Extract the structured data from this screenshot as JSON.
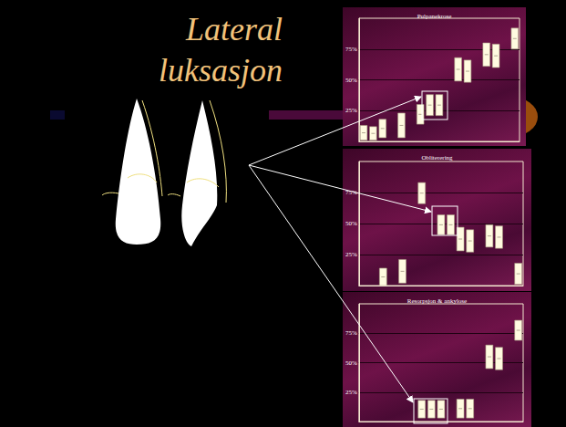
{
  "heading": "Lateral luksasjon",
  "chart_data": [
    {
      "type": "bar",
      "title": "Pulpanekrose",
      "categories": [
        null,
        null,
        null,
        null,
        null,
        null,
        null,
        null,
        null,
        null,
        null,
        null,
        null,
        null,
        null,
        null,
        null
      ],
      "low": [
        1,
        1,
        3,
        null,
        3,
        null,
        14,
        21,
        21,
        null,
        49,
        48,
        null,
        61,
        60,
        null,
        75
      ],
      "high": [
        13,
        12,
        18,
        null,
        23,
        null,
        30,
        38,
        38,
        null,
        68,
        66,
        null,
        80,
        79,
        null,
        92
      ],
      "ylim": [
        0,
        100
      ],
      "yticks": [
        {
          "value": 25,
          "label": "25%"
        },
        {
          "value": 50,
          "label": "50%"
        },
        {
          "value": 75,
          "label": "75%"
        }
      ],
      "grid": true,
      "tick_labels": "y",
      "color": "#fffbe0"
    },
    {
      "type": "bar",
      "title": "Obliterering",
      "categories": [
        null,
        null,
        null,
        null,
        null,
        null,
        null,
        null,
        null,
        null,
        null,
        null,
        null,
        null,
        null,
        null,
        null
      ],
      "low": [
        null,
        null,
        0,
        null,
        2,
        null,
        66,
        null,
        41,
        41,
        28,
        27,
        null,
        31,
        30,
        null,
        1
      ],
      "high": [
        null,
        null,
        14,
        null,
        21,
        null,
        83,
        null,
        57,
        57,
        47,
        45,
        null,
        49,
        48,
        null,
        18
      ],
      "ylim": [
        0,
        100
      ],
      "yticks": [
        {
          "value": 25,
          "label": "25%"
        },
        {
          "value": 50,
          "label": "50%"
        },
        {
          "value": 75,
          "label": "75%"
        }
      ],
      "grid": true,
      "tick_labels": "y",
      "color": "#fffbe0"
    },
    {
      "type": "bar",
      "title": "Resorpsjon & ankylose",
      "categories": [
        null,
        null,
        null,
        null,
        null,
        null,
        null,
        null,
        null,
        null,
        null,
        null,
        null,
        null,
        null,
        null,
        null
      ],
      "low": [
        null,
        null,
        null,
        null,
        null,
        null,
        3,
        3,
        3,
        null,
        3,
        3,
        null,
        45,
        44,
        null,
        69
      ],
      "high": [
        null,
        null,
        null,
        null,
        null,
        null,
        18,
        18,
        18,
        null,
        19,
        19,
        null,
        65,
        63,
        null,
        86
      ],
      "ylim": [
        0,
        100
      ],
      "yticks": [
        {
          "value": 25,
          "label": "25%"
        },
        {
          "value": 50,
          "label": "50%"
        },
        {
          "value": 75,
          "label": "75%"
        }
      ],
      "grid": true,
      "tick_labels": "y",
      "color": "#fffbe0"
    }
  ]
}
